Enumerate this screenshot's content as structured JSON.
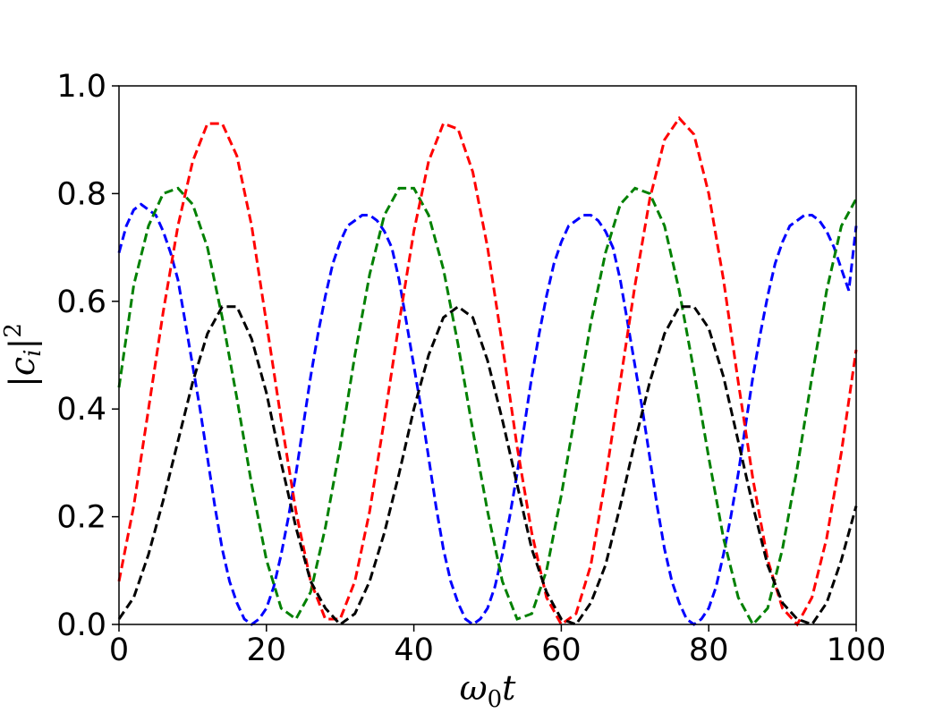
{
  "chart_data": {
    "type": "line",
    "xlabel": "ω0t",
    "xlabel_base": "ω",
    "xlabel_sub": "0",
    "xlabel_tail": "t",
    "ylabel": "|ci|²",
    "ylabel_open": "|c",
    "ylabel_sub": "i",
    "ylabel_close": "|",
    "ylabel_sup": "2",
    "xlim": [
      0,
      100
    ],
    "ylim": [
      0,
      1.0
    ],
    "x_ticks": [
      "0",
      "20",
      "40",
      "60",
      "80",
      "100"
    ],
    "y_ticks": [
      "0.0",
      "0.2",
      "0.4",
      "0.6",
      "0.8",
      "1.0"
    ],
    "grid": false,
    "legend": "none",
    "series": [
      {
        "color": "#0000ff",
        "style": "dashed",
        "points": [
          [
            0,
            0.69
          ],
          [
            1,
            0.74
          ],
          [
            2,
            0.77
          ],
          [
            3,
            0.78
          ],
          [
            4,
            0.77
          ],
          [
            5,
            0.76
          ],
          [
            6,
            0.73
          ],
          [
            7,
            0.69
          ],
          [
            8,
            0.64
          ],
          [
            9,
            0.56
          ],
          [
            10,
            0.48
          ],
          [
            11,
            0.4
          ],
          [
            12,
            0.31
          ],
          [
            13,
            0.22
          ],
          [
            14,
            0.14
          ],
          [
            15,
            0.08
          ],
          [
            16,
            0.04
          ],
          [
            17,
            0.01
          ],
          [
            18,
            0.0
          ],
          [
            19,
            0.01
          ],
          [
            20,
            0.03
          ],
          [
            21,
            0.07
          ],
          [
            22,
            0.13
          ],
          [
            23,
            0.2
          ],
          [
            24,
            0.28
          ],
          [
            25,
            0.37
          ],
          [
            26,
            0.46
          ],
          [
            27,
            0.54
          ],
          [
            28,
            0.61
          ],
          [
            29,
            0.67
          ],
          [
            30,
            0.71
          ],
          [
            31,
            0.74
          ],
          [
            32,
            0.75
          ],
          [
            33,
            0.76
          ],
          [
            34,
            0.76
          ],
          [
            35,
            0.75
          ],
          [
            36,
            0.73
          ],
          [
            37,
            0.7
          ],
          [
            38,
            0.64
          ],
          [
            39,
            0.56
          ],
          [
            40,
            0.48
          ],
          [
            41,
            0.4
          ],
          [
            42,
            0.31
          ],
          [
            43,
            0.22
          ],
          [
            44,
            0.14
          ],
          [
            45,
            0.08
          ],
          [
            46,
            0.04
          ],
          [
            47,
            0.01
          ],
          [
            48,
            0.0
          ],
          [
            49,
            0.01
          ],
          [
            50,
            0.03
          ],
          [
            51,
            0.07
          ],
          [
            52,
            0.13
          ],
          [
            53,
            0.2
          ],
          [
            54,
            0.28
          ],
          [
            55,
            0.37
          ],
          [
            56,
            0.46
          ],
          [
            57,
            0.54
          ],
          [
            58,
            0.61
          ],
          [
            59,
            0.67
          ],
          [
            60,
            0.71
          ],
          [
            61,
            0.74
          ],
          [
            62,
            0.75
          ],
          [
            63,
            0.76
          ],
          [
            64,
            0.76
          ],
          [
            65,
            0.75
          ],
          [
            66,
            0.73
          ],
          [
            67,
            0.7
          ],
          [
            68,
            0.64
          ],
          [
            69,
            0.56
          ],
          [
            70,
            0.48
          ],
          [
            71,
            0.4
          ],
          [
            72,
            0.31
          ],
          [
            73,
            0.22
          ],
          [
            74,
            0.14
          ],
          [
            75,
            0.08
          ],
          [
            76,
            0.04
          ],
          [
            77,
            0.01
          ],
          [
            78,
            0.0
          ],
          [
            79,
            0.01
          ],
          [
            80,
            0.03
          ],
          [
            81,
            0.07
          ],
          [
            82,
            0.13
          ],
          [
            83,
            0.2
          ],
          [
            84,
            0.28
          ],
          [
            85,
            0.37
          ],
          [
            86,
            0.46
          ],
          [
            87,
            0.54
          ],
          [
            88,
            0.61
          ],
          [
            89,
            0.67
          ],
          [
            90,
            0.71
          ],
          [
            91,
            0.74
          ],
          [
            92,
            0.75
          ],
          [
            93,
            0.76
          ],
          [
            94,
            0.76
          ],
          [
            95,
            0.75
          ],
          [
            96,
            0.73
          ],
          [
            97,
            0.7
          ],
          [
            98,
            0.66
          ],
          [
            99,
            0.62
          ],
          [
            100,
            0.74
          ]
        ]
      },
      {
        "color": "#008000",
        "style": "dashed",
        "points": [
          [
            0,
            0.44
          ],
          [
            2,
            0.63
          ],
          [
            4,
            0.74
          ],
          [
            6,
            0.8
          ],
          [
            8,
            0.81
          ],
          [
            10,
            0.78
          ],
          [
            12,
            0.7
          ],
          [
            14,
            0.57
          ],
          [
            16,
            0.42
          ],
          [
            18,
            0.26
          ],
          [
            20,
            0.12
          ],
          [
            22,
            0.03
          ],
          [
            24,
            0.01
          ],
          [
            26,
            0.06
          ],
          [
            28,
            0.18
          ],
          [
            30,
            0.33
          ],
          [
            32,
            0.5
          ],
          [
            34,
            0.65
          ],
          [
            36,
            0.76
          ],
          [
            38,
            0.81
          ],
          [
            40,
            0.81
          ],
          [
            42,
            0.76
          ],
          [
            44,
            0.66
          ],
          [
            46,
            0.52
          ],
          [
            48,
            0.36
          ],
          [
            50,
            0.21
          ],
          [
            52,
            0.08
          ],
          [
            54,
            0.01
          ],
          [
            56,
            0.02
          ],
          [
            58,
            0.1
          ],
          [
            60,
            0.24
          ],
          [
            62,
            0.4
          ],
          [
            64,
            0.56
          ],
          [
            66,
            0.69
          ],
          [
            68,
            0.78
          ],
          [
            70,
            0.81
          ],
          [
            72,
            0.8
          ],
          [
            74,
            0.74
          ],
          [
            76,
            0.62
          ],
          [
            78,
            0.47
          ],
          [
            80,
            0.31
          ],
          [
            82,
            0.16
          ],
          [
            84,
            0.05
          ],
          [
            86,
            0.0
          ],
          [
            88,
            0.03
          ],
          [
            90,
            0.14
          ],
          [
            92,
            0.29
          ],
          [
            94,
            0.46
          ],
          [
            96,
            0.62
          ],
          [
            98,
            0.74
          ],
          [
            100,
            0.79
          ]
        ]
      },
      {
        "color": "#ff0000",
        "style": "dashed",
        "points": [
          [
            0,
            0.08
          ],
          [
            2,
            0.22
          ],
          [
            4,
            0.4
          ],
          [
            6,
            0.58
          ],
          [
            8,
            0.74
          ],
          [
            10,
            0.86
          ],
          [
            12,
            0.93
          ],
          [
            14,
            0.93
          ],
          [
            16,
            0.87
          ],
          [
            18,
            0.74
          ],
          [
            20,
            0.56
          ],
          [
            22,
            0.38
          ],
          [
            24,
            0.21
          ],
          [
            26,
            0.08
          ],
          [
            28,
            0.01
          ],
          [
            30,
            0.01
          ],
          [
            32,
            0.08
          ],
          [
            34,
            0.21
          ],
          [
            36,
            0.38
          ],
          [
            38,
            0.56
          ],
          [
            40,
            0.73
          ],
          [
            42,
            0.86
          ],
          [
            44,
            0.93
          ],
          [
            46,
            0.92
          ],
          [
            48,
            0.84
          ],
          [
            50,
            0.7
          ],
          [
            52,
            0.52
          ],
          [
            54,
            0.33
          ],
          [
            56,
            0.17
          ],
          [
            58,
            0.05
          ],
          [
            60,
            0.0
          ],
          [
            62,
            0.02
          ],
          [
            64,
            0.11
          ],
          [
            66,
            0.27
          ],
          [
            68,
            0.45
          ],
          [
            70,
            0.63
          ],
          [
            72,
            0.79
          ],
          [
            74,
            0.9
          ],
          [
            76,
            0.94
          ],
          [
            78,
            0.91
          ],
          [
            80,
            0.8
          ],
          [
            82,
            0.64
          ],
          [
            84,
            0.45
          ],
          [
            86,
            0.27
          ],
          [
            88,
            0.12
          ],
          [
            90,
            0.03
          ],
          [
            92,
            0.0
          ],
          [
            94,
            0.05
          ],
          [
            96,
            0.16
          ],
          [
            98,
            0.32
          ],
          [
            100,
            0.51
          ]
        ]
      },
      {
        "color": "#000000",
        "style": "dashed",
        "points": [
          [
            0,
            0.01
          ],
          [
            2,
            0.05
          ],
          [
            4,
            0.13
          ],
          [
            6,
            0.23
          ],
          [
            8,
            0.34
          ],
          [
            10,
            0.45
          ],
          [
            12,
            0.54
          ],
          [
            14,
            0.59
          ],
          [
            16,
            0.59
          ],
          [
            18,
            0.53
          ],
          [
            20,
            0.43
          ],
          [
            22,
            0.3
          ],
          [
            24,
            0.18
          ],
          [
            26,
            0.08
          ],
          [
            28,
            0.03
          ],
          [
            30,
            0.0
          ],
          [
            32,
            0.02
          ],
          [
            34,
            0.08
          ],
          [
            36,
            0.17
          ],
          [
            38,
            0.28
          ],
          [
            40,
            0.4
          ],
          [
            42,
            0.5
          ],
          [
            44,
            0.57
          ],
          [
            46,
            0.59
          ],
          [
            48,
            0.57
          ],
          [
            50,
            0.49
          ],
          [
            52,
            0.38
          ],
          [
            54,
            0.26
          ],
          [
            56,
            0.14
          ],
          [
            58,
            0.06
          ],
          [
            60,
            0.01
          ],
          [
            62,
            0.0
          ],
          [
            64,
            0.04
          ],
          [
            66,
            0.11
          ],
          [
            68,
            0.22
          ],
          [
            70,
            0.34
          ],
          [
            72,
            0.45
          ],
          [
            74,
            0.54
          ],
          [
            76,
            0.59
          ],
          [
            78,
            0.59
          ],
          [
            80,
            0.55
          ],
          [
            82,
            0.46
          ],
          [
            84,
            0.34
          ],
          [
            86,
            0.22
          ],
          [
            88,
            0.11
          ],
          [
            90,
            0.04
          ],
          [
            92,
            0.01
          ],
          [
            94,
            0.0
          ],
          [
            96,
            0.04
          ],
          [
            98,
            0.12
          ],
          [
            100,
            0.22
          ]
        ]
      }
    ]
  }
}
